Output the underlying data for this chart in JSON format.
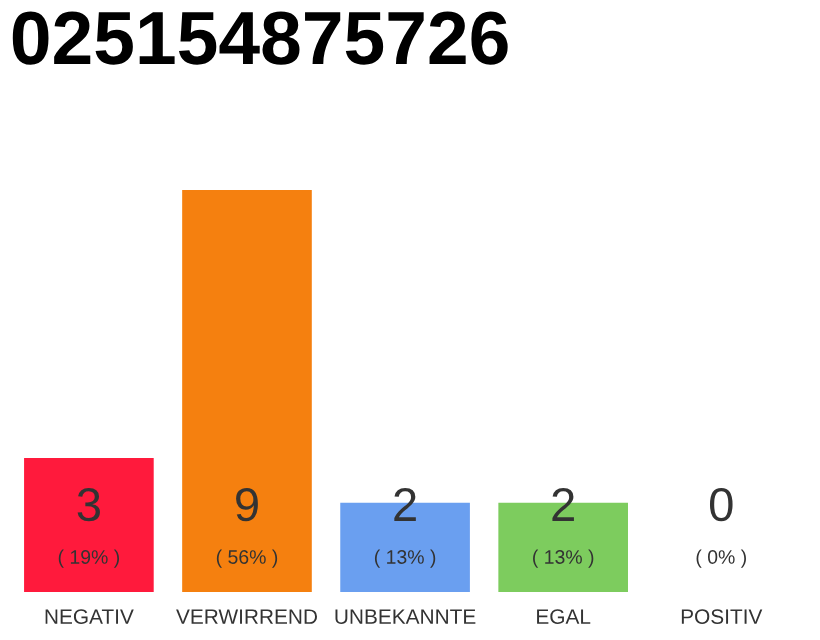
{
  "chart_data": {
    "type": "bar",
    "title": "025154875726",
    "categories": [
      "NEGATIV",
      "VERWIRREND",
      "UNBEKANNTE",
      "EGAL",
      "POSITIV"
    ],
    "values": [
      3,
      9,
      2,
      2,
      0
    ],
    "colors": [
      "#ff1a3c",
      "#f5800f",
      "#6a9ff0",
      "#7dcc5e",
      "#eeeeee"
    ],
    "value_labels": [
      "3\n( 19% )",
      "9\n( 56% )",
      "2\n( 13% )",
      "2\n( 13% )",
      "0\n( 0% )"
    ],
    "grid": false,
    "legend": false
  }
}
